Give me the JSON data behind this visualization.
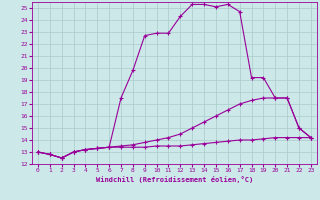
{
  "xlabel": "Windchill (Refroidissement éolien,°C)",
  "bg_color": "#cce8e8",
  "grid_color": "#aacccc",
  "line_color": "#990099",
  "xlim": [
    -0.5,
    23.5
  ],
  "ylim": [
    12,
    25.5
  ],
  "xticks": [
    0,
    1,
    2,
    3,
    4,
    5,
    6,
    7,
    8,
    9,
    10,
    11,
    12,
    13,
    14,
    15,
    16,
    17,
    18,
    19,
    20,
    21,
    22,
    23
  ],
  "yticks": [
    12,
    13,
    14,
    15,
    16,
    17,
    18,
    19,
    20,
    21,
    22,
    23,
    24,
    25
  ],
  "line1_x": [
    0,
    1,
    2,
    3,
    4,
    5,
    6,
    7,
    8,
    9,
    10,
    11,
    12,
    13,
    14,
    15,
    16,
    17,
    18,
    19,
    20,
    21,
    22,
    23
  ],
  "line1_y": [
    13.0,
    12.8,
    12.5,
    13.0,
    13.2,
    13.3,
    13.4,
    17.5,
    19.8,
    22.7,
    22.9,
    22.9,
    24.3,
    25.3,
    25.3,
    25.1,
    25.3,
    24.7,
    19.2,
    19.2,
    17.5,
    17.5,
    15.0,
    14.2
  ],
  "line2_x": [
    0,
    1,
    2,
    3,
    4,
    5,
    6,
    7,
    8,
    9,
    10,
    11,
    12,
    13,
    14,
    15,
    16,
    17,
    18,
    19,
    20,
    21,
    22,
    23
  ],
  "line2_y": [
    13.0,
    12.8,
    12.5,
    13.0,
    13.2,
    13.3,
    13.4,
    13.5,
    13.6,
    13.8,
    14.0,
    14.2,
    14.5,
    15.0,
    15.5,
    16.0,
    16.5,
    17.0,
    17.3,
    17.5,
    17.5,
    17.5,
    15.0,
    14.2
  ],
  "line3_x": [
    0,
    1,
    2,
    3,
    4,
    5,
    6,
    7,
    8,
    9,
    10,
    11,
    12,
    13,
    14,
    15,
    16,
    17,
    18,
    19,
    20,
    21,
    22,
    23
  ],
  "line3_y": [
    13.0,
    12.8,
    12.5,
    13.0,
    13.2,
    13.3,
    13.4,
    13.4,
    13.4,
    13.4,
    13.5,
    13.5,
    13.5,
    13.6,
    13.7,
    13.8,
    13.9,
    14.0,
    14.0,
    14.1,
    14.2,
    14.2,
    14.2,
    14.2
  ]
}
